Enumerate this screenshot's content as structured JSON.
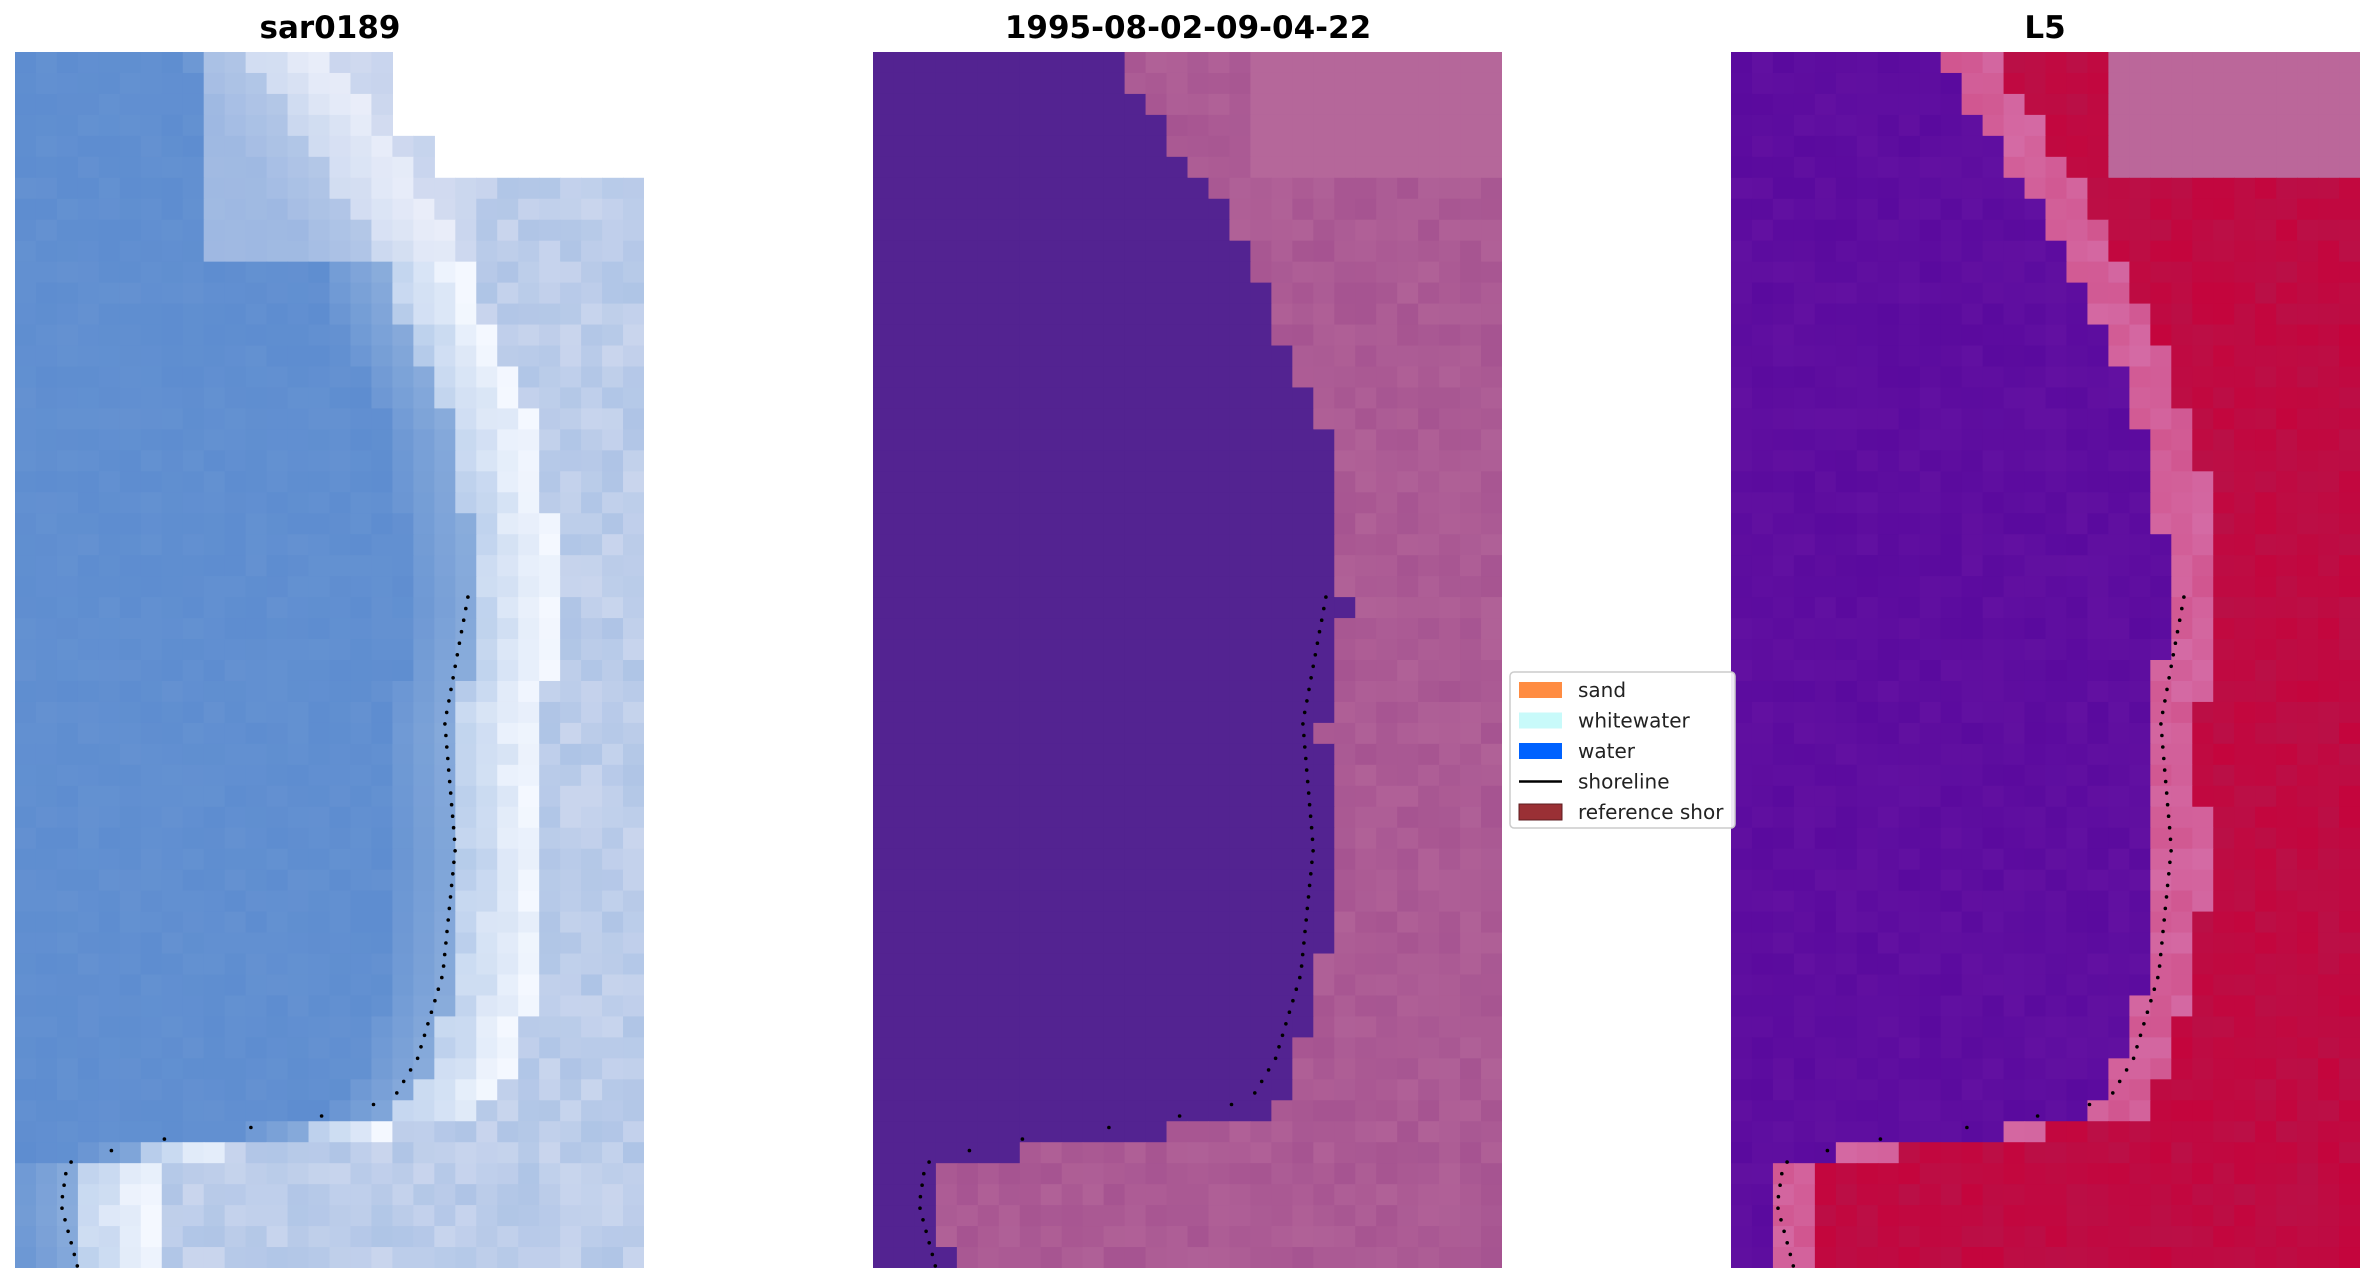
{
  "chart_data": {
    "type": "heatmap",
    "panels": [
      {
        "name": "panel-rgb",
        "title": "sar0189",
        "render": "rgb",
        "colors": {
          "water": "#5b8bcf",
          "mid": "#8fb0dd",
          "foam": "#dde2f3",
          "bright": "#f4f8ff"
        }
      },
      {
        "name": "panel-classified",
        "title": "1995-08-02-09-04-22",
        "render": "classified",
        "colors": {
          "water": "#532391",
          "land": "#a3508f",
          "land_light": "#b5679a"
        }
      },
      {
        "name": "panel-index",
        "title": "L5",
        "render": "index",
        "colors": {
          "low": "#5a0a9e",
          "high": "#c4053d",
          "edge": "#d46aa4",
          "nodata": "#bb679a"
        }
      }
    ],
    "legend": {
      "placement": "center",
      "entries": [
        {
          "label": "sand",
          "color": "#ff8c42",
          "kind": "patch"
        },
        {
          "label": "whitewater",
          "color": "#c8fafa",
          "kind": "patch"
        },
        {
          "label": "water",
          "color": "#0062ff",
          "kind": "patch"
        },
        {
          "label": "shoreline",
          "color": "#000000",
          "kind": "line"
        },
        {
          "label": "reference shor",
          "color": "#9a3035",
          "kind": "patch"
        }
      ]
    },
    "grid": false
  }
}
